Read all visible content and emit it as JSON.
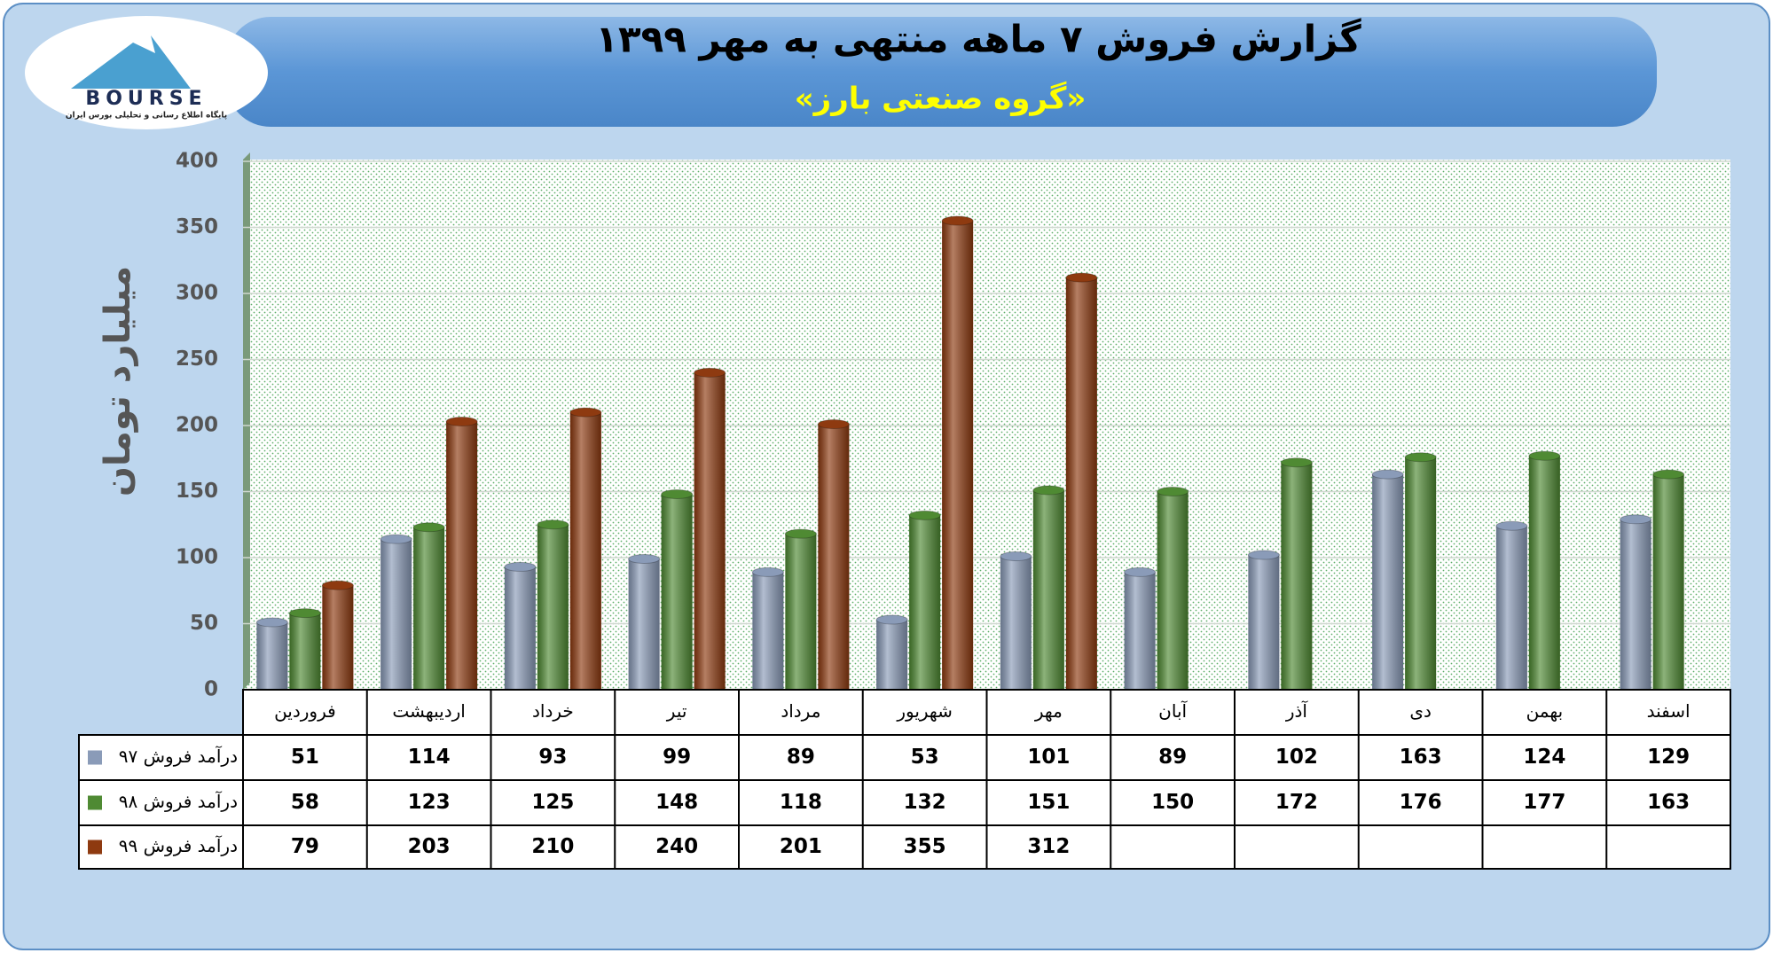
{
  "logo": {
    "name": "BOURSE",
    "tagline": "پایگاه اطلاع رسانی و تحلیلی بورس ایران"
  },
  "chart_data": {
    "type": "bar",
    "title": "گزارش فروش ۷ ماهه منتهی به مهر ۱۳۹۹",
    "subtitle": "«گروه صنعتی بارز»",
    "y_label": "میلیارد تومان",
    "categories": [
      "فروردین",
      "اردیبهشت",
      "خرداد",
      "تیر",
      "مرداد",
      "شهریور",
      "مهر",
      "آبان",
      "آذر",
      "دی",
      "بهمن",
      "اسفند"
    ],
    "series": [
      {
        "name": "درآمد فروش ۹۷",
        "color": "#8a9bb8",
        "values": [
          51,
          114,
          93,
          99,
          89,
          53,
          101,
          89,
          102,
          163,
          124,
          129
        ]
      },
      {
        "name": "درآمد فروش ۹۸",
        "color": "#4f8a33",
        "values": [
          58,
          123,
          125,
          148,
          118,
          132,
          151,
          150,
          172,
          176,
          177,
          163
        ]
      },
      {
        "name": "درآمد فروش ۹۹",
        "color": "#8e3a10",
        "values": [
          79,
          203,
          210,
          240,
          201,
          355,
          312,
          null,
          null,
          null,
          null,
          null
        ]
      }
    ],
    "ylim": [
      0,
      400
    ],
    "yticks": [
      0,
      50,
      100,
      150,
      200,
      250,
      300,
      350,
      400
    ],
    "grid": true
  }
}
